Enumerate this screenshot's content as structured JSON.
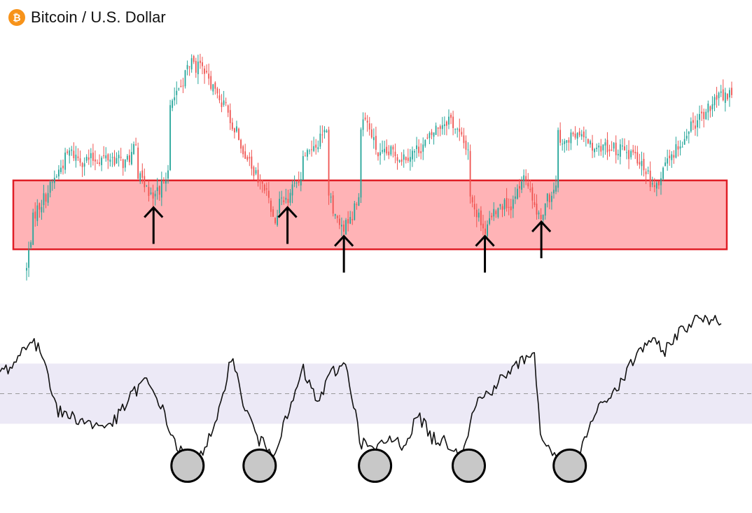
{
  "header": {
    "icon": "bitcoin-icon",
    "icon_glyph": "₿",
    "title": "Bitcoin / U.S. Dollar"
  },
  "colors": {
    "bullish": "#26a69a",
    "bearish": "#ef5350",
    "zone_fill": "#ffb3b6",
    "zone_stroke": "#e01e26",
    "osc_band": "#ece9f6",
    "osc_line": "#111111",
    "marker_fill": "#c8c8c8",
    "coin": "#f7931a"
  },
  "chart_data": [
    {
      "type": "candlestick",
      "title": "Bitcoin / U.S. Dollar",
      "ylim": [
        0,
        100
      ],
      "support_zone": [
        18,
        42
      ],
      "path": [
        [
          0,
          11
        ],
        [
          1,
          30
        ],
        [
          3,
          38
        ],
        [
          6,
          52
        ],
        [
          8,
          49
        ],
        [
          12,
          50
        ],
        [
          14,
          48
        ],
        [
          16,
          55
        ],
        [
          17,
          58
        ],
        [
          19,
          66
        ],
        [
          22,
          75
        ],
        [
          23,
          83
        ],
        [
          25,
          80
        ],
        [
          28,
          68
        ],
        [
          30,
          58
        ],
        [
          32,
          45
        ],
        [
          34,
          38
        ],
        [
          35,
          28
        ],
        [
          36,
          34
        ],
        [
          38,
          46
        ],
        [
          40,
          52
        ],
        [
          42,
          58
        ],
        [
          44,
          64
        ],
        [
          46,
          58
        ],
        [
          48,
          64
        ],
        [
          50,
          50
        ],
        [
          52,
          52
        ],
        [
          53,
          50
        ],
        [
          55,
          52
        ],
        [
          57,
          56
        ],
        [
          58,
          60
        ],
        [
          60,
          64
        ],
        [
          62,
          55
        ],
        [
          64,
          49
        ],
        [
          66,
          45
        ],
        [
          67,
          36
        ],
        [
          68,
          32
        ],
        [
          69,
          34
        ],
        [
          71,
          45
        ],
        [
          73,
          53
        ],
        [
          75,
          58
        ],
        [
          77,
          56
        ],
        [
          79,
          58
        ],
        [
          81,
          53
        ],
        [
          83,
          54
        ],
        [
          85,
          51
        ],
        [
          87,
          50
        ],
        [
          88,
          44
        ],
        [
          89,
          40
        ],
        [
          90,
          44
        ],
        [
          92,
          52
        ],
        [
          94,
          60
        ],
        [
          96,
          64
        ],
        [
          98,
          72
        ],
        [
          100,
          72
        ]
      ],
      "dips": [
        [
          18,
          35,
          "arrow"
        ],
        [
          37,
          35,
          "arrow"
        ],
        [
          45,
          25,
          "arrow"
        ],
        [
          65,
          25,
          "arrow"
        ],
        [
          73,
          30,
          "arrow"
        ]
      ]
    },
    {
      "type": "line",
      "ylim": [
        0,
        100
      ],
      "band": [
        30,
        70
      ],
      "midline": 50,
      "path": [
        [
          0,
          64
        ],
        [
          2,
          70
        ],
        [
          4,
          86
        ],
        [
          6,
          76
        ],
        [
          8,
          38
        ],
        [
          10,
          35
        ],
        [
          12,
          31
        ],
        [
          14,
          28
        ],
        [
          16,
          32
        ],
        [
          18,
          47
        ],
        [
          20,
          59
        ],
        [
          22,
          46
        ],
        [
          24,
          20
        ],
        [
          26,
          4
        ],
        [
          28,
          12
        ],
        [
          30,
          28
        ],
        [
          32,
          76
        ],
        [
          34,
          40
        ],
        [
          36,
          18
        ],
        [
          38,
          12
        ],
        [
          40,
          36
        ],
        [
          42,
          66
        ],
        [
          44,
          44
        ],
        [
          46,
          64
        ],
        [
          48,
          70
        ],
        [
          50,
          18
        ],
        [
          52,
          12
        ],
        [
          54,
          20
        ],
        [
          56,
          16
        ],
        [
          58,
          36
        ],
        [
          60,
          20
        ],
        [
          62,
          18
        ],
        [
          64,
          10
        ],
        [
          66,
          44
        ],
        [
          68,
          52
        ],
        [
          70,
          62
        ],
        [
          72,
          70
        ],
        [
          74,
          80
        ],
        [
          75,
          20
        ],
        [
          77,
          10
        ],
        [
          80,
          4
        ],
        [
          82,
          32
        ],
        [
          84,
          46
        ],
        [
          86,
          56
        ],
        [
          88,
          74
        ],
        [
          90,
          86
        ],
        [
          92,
          78
        ],
        [
          94,
          90
        ],
        [
          96,
          98
        ],
        [
          97,
          100
        ]
      ],
      "markers": [
        [
          26,
          4
        ],
        [
          36,
          4
        ],
        [
          52,
          4
        ],
        [
          65,
          4
        ],
        [
          79,
          4
        ]
      ]
    }
  ]
}
